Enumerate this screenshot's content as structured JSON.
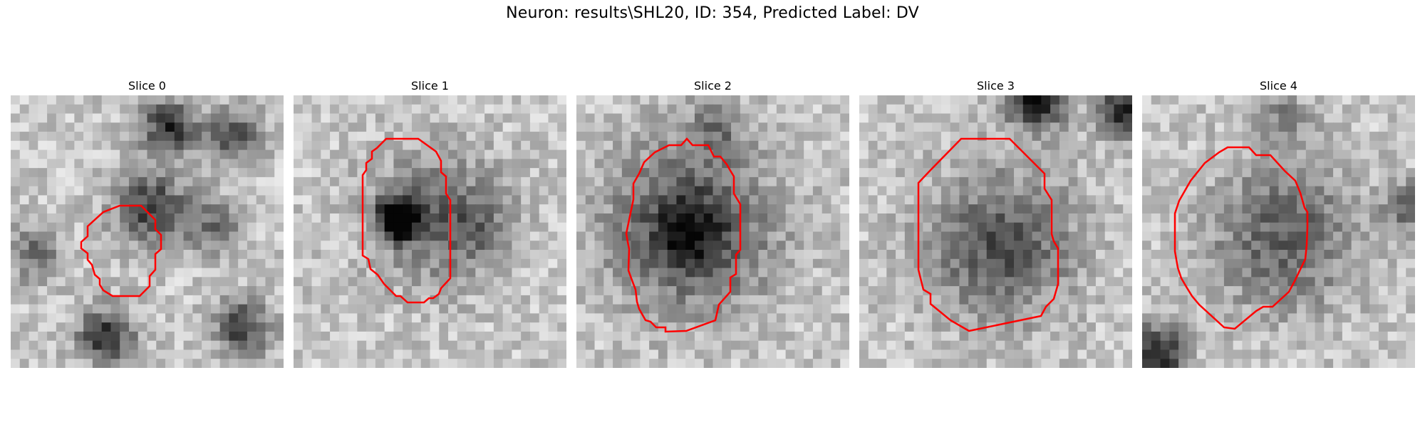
{
  "figure": {
    "title": "Neuron: results\\SHL20, ID: 354, Predicted Label: DV"
  },
  "panels": [
    {
      "label": "Slice 0"
    },
    {
      "label": "Slice 1"
    },
    {
      "label": "Slice 2"
    },
    {
      "label": "Slice 3"
    },
    {
      "label": "Slice 4"
    }
  ],
  "colors": {
    "contour": "#ff0000",
    "background": "#ffffff"
  }
}
